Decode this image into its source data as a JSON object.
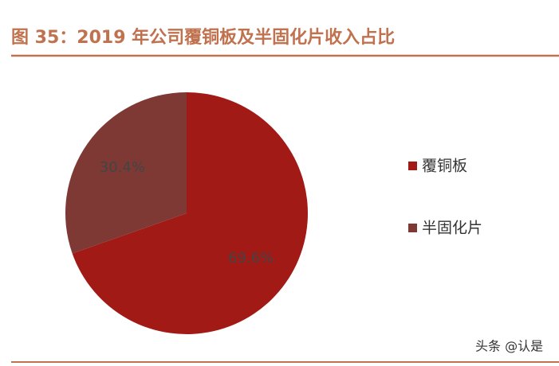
{
  "chart_data": {
    "type": "pie",
    "title": "图 35：2019 年公司覆铜板及半固化片收入占比",
    "categories": [
      "覆铜板",
      "半固化片"
    ],
    "values": [
      69.6,
      30.4
    ],
    "value_labels": [
      "69.6%",
      "30.4%"
    ],
    "colors": [
      "#a11a16",
      "#7e3935"
    ],
    "legend": "right"
  },
  "watermark": "头条 @认是"
}
